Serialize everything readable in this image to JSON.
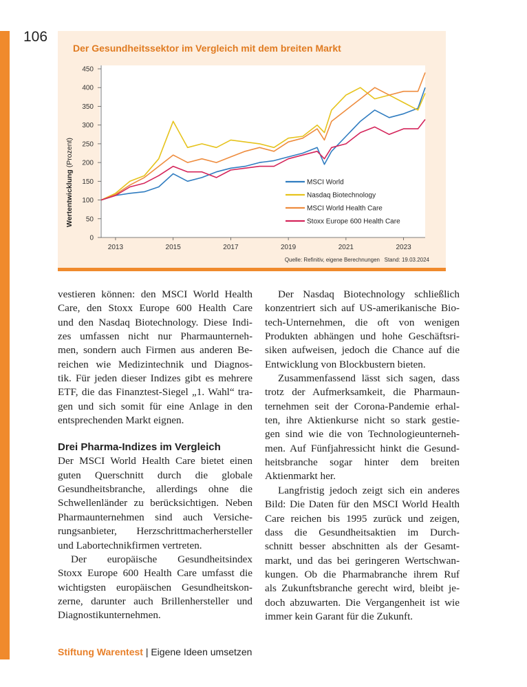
{
  "page_number": "106",
  "chart_data": {
    "type": "line",
    "title": "Der Gesundheitssektor im Vergleich mit dem breiten Markt",
    "y_label": "Wertentwicklung",
    "y_label_unit": "(Prozent)",
    "source": "Quelle: Refinitiv, eigene Berechnungen",
    "stand": "Stand: 19.03.2024",
    "x": [
      2012.5,
      2013,
      2013.5,
      2014,
      2014.5,
      2015,
      2015.5,
      2016,
      2016.5,
      2017,
      2017.5,
      2018,
      2018.5,
      2019,
      2019.5,
      2020,
      2020.25,
      2020.5,
      2021,
      2021.5,
      2022,
      2022.5,
      2023,
      2023.5,
      2023.75
    ],
    "xlim": [
      2012.5,
      2023.75
    ],
    "xticks": [
      2013,
      2015,
      2017,
      2019,
      2021,
      2023
    ],
    "ylim": [
      0,
      450
    ],
    "yticks": [
      0,
      50,
      100,
      150,
      200,
      250,
      300,
      350,
      400,
      450
    ],
    "grid": false,
    "legend": "lower right",
    "series": [
      {
        "name": "MSCI World",
        "color": "#2f7cc0",
        "values": [
          100,
          112,
          118,
          122,
          135,
          170,
          150,
          160,
          175,
          185,
          190,
          200,
          205,
          215,
          225,
          240,
          195,
          230,
          270,
          310,
          340,
          320,
          330,
          345,
          400
        ]
      },
      {
        "name": "Nasdaq Biotechnology",
        "color": "#e6c31c",
        "values": [
          100,
          118,
          150,
          165,
          210,
          310,
          240,
          250,
          240,
          260,
          255,
          250,
          240,
          265,
          270,
          300,
          280,
          340,
          380,
          400,
          370,
          380,
          360,
          340,
          385
        ]
      },
      {
        "name": "MSCI World Health Care",
        "color": "#ee8c3e",
        "values": [
          100,
          115,
          140,
          160,
          190,
          220,
          200,
          210,
          200,
          215,
          230,
          240,
          230,
          255,
          265,
          290,
          260,
          310,
          340,
          370,
          400,
          380,
          390,
          390,
          440
        ]
      },
      {
        "name": "Stoxx Europe 600 Health Care",
        "color": "#d4245a",
        "values": [
          100,
          112,
          135,
          145,
          165,
          190,
          175,
          175,
          160,
          180,
          185,
          190,
          190,
          210,
          220,
          230,
          210,
          240,
          250,
          280,
          295,
          275,
          290,
          290,
          315
        ]
      }
    ]
  },
  "columns": [
    [
      {
        "lines": [
          "vestieren können: den MSCI World Health",
          "Care, den Stoxx Europe 600 Health Care",
          "und den Nasdaq Biotechnology. Diese Indi-",
          "zes umfassen nicht nur Pharmaunterneh-",
          "men, sondern auch Firmen aus anderen Be-",
          "reichen wie Medizintechnik und Diagnos-",
          "tik. Für jeden dieser Indizes gibt es mehrere",
          "ETF, die das Finanztest-Siegel „1. Wahl“ tra-",
          "gen und sich somit für eine Anlage in den",
          "entsprechenden Markt eignen."
        ]
      },
      {
        "heading": "Drei Pharma-Indizes im Vergleich"
      },
      {
        "lines": [
          "Der MSCI World Health Care bietet einen",
          "guten Querschnitt durch die globale",
          "Gesundheitsbranche, allerdings ohne die",
          "Schwellenländer zu berücksichtigen. Neben",
          "Pharmaunternehmen sind auch Versiche-",
          "rungsanbieter, Herzschrittmacherhersteller",
          "und Labortechnikfirmen vertreten."
        ]
      },
      {
        "lines": [
          "Der europäische Gesundheitsindex",
          "Stoxx Europe 600 Health Care umfasst die",
          "wichtigsten europäischen Gesundheitskon-",
          "zerne, darunter auch Brillenhersteller und",
          "Diagnostikunternehmen."
        ]
      }
    ],
    [
      {
        "lines": [
          "Der Nasdaq Biotechnology schließlich",
          "konzentriert sich auf US-amerikanische Bio-",
          "tech-Unternehmen, die oft von wenigen",
          "Produkten abhängen und hohe Geschäftsri-",
          "siken aufweisen, jedoch die Chance auf die",
          "Entwicklung von Blockbustern bieten."
        ]
      },
      {
        "lines": [
          "Zusammenfassend lässt sich sagen, dass",
          "trotz der Aufmerksamkeit, die Pharmaun-",
          "ternehmen seit der Corona-Pandemie erhal-",
          "ten, ihre Aktienkurse nicht so stark gestie-",
          "gen sind wie die von Technologieunterneh-",
          "men. Auf Fünfjahressicht hinkt die Gesund-",
          "heitsbranche sogar hinter dem breiten",
          "Aktienmarkt her."
        ]
      },
      {
        "lines": [
          "Langfristig jedoch zeigt sich ein anderes",
          "Bild: Die Daten für den MSCI World Health",
          "Care reichen bis 1995 zurück und zeigen,",
          "dass die Gesundheitsaktien im Durch-",
          "schnitt besser abschnitten als der Gesamt-",
          "markt, und das bei geringeren Wertschwan-",
          "kungen. Ob die Pharmabranche ihrem Ruf",
          "als Zukunftsbranche gerecht wird, bleibt je-",
          "doch abzuwarten. Die Vergangenheit ist wie",
          "immer kein Garant für die Zukunft."
        ]
      }
    ]
  ],
  "footer": {
    "brand": "Stiftung Warentest",
    "separator": "|",
    "book": "Eigene Ideen umsetzen"
  }
}
